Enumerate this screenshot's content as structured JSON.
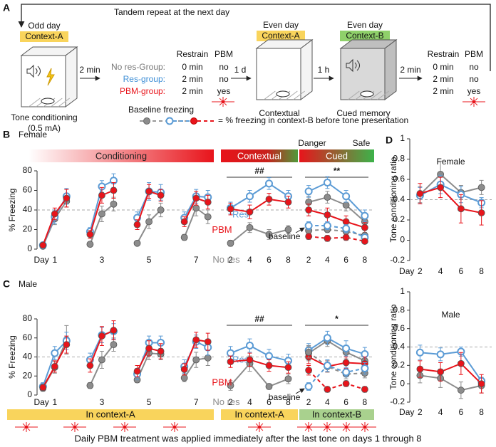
{
  "diagram": {
    "repeat": "Tandem repeat at the next day",
    "step1": {
      "day": "Odd day",
      "context": "Context-A",
      "caption": "Tone conditioning",
      "caption2": "(0.5 mA)"
    },
    "arrow1": "2 min",
    "table1": {
      "headers": [
        "Restrain",
        "PBM"
      ],
      "rows": [
        [
          "No res-Group:",
          "0 min",
          "no"
        ],
        [
          "Res-group:",
          "2 min",
          "no"
        ],
        [
          "PBM-group:",
          "2 min",
          "yes"
        ]
      ]
    },
    "arrow2": "1 d",
    "step2": {
      "day": "Even day",
      "context": "Context-A",
      "caption": "Contextual"
    },
    "arrow3": "1 h",
    "step3": {
      "day": "Even day",
      "context": "Context-B",
      "caption": "Cued memory"
    },
    "arrow4": "2 min",
    "table2": {
      "headers": [
        "Restrain",
        "PBM"
      ],
      "rows": [
        [
          "0 min",
          "no"
        ],
        [
          "2 min",
          "no"
        ],
        [
          "2 min",
          "yes"
        ]
      ]
    },
    "legend": {
      "title": "Baseline freezing",
      "text": "= % freezing in context-B before tone presentation"
    }
  },
  "figure": {
    "panels": [
      "A",
      "B",
      "C",
      "D"
    ],
    "female": "Female",
    "male": "Male",
    "context_bars": [
      "In context-A",
      "In context-A",
      "In context-B"
    ],
    "footer": "Daily PBM treatment was applied immediately after the last tone on days 1 through 8"
  },
  "chart_data": [
    {
      "type": "line",
      "header": "Conditioning",
      "ylabel": "% Freezing",
      "xlabel": "Day",
      "categories": [
        null,
        "1",
        null,
        null,
        null,
        "3",
        null,
        null,
        null,
        "5",
        null,
        null,
        null,
        "7",
        null
      ],
      "ylim": [
        0,
        80
      ],
      "yticks": [
        0,
        20,
        40,
        60,
        80
      ],
      "ref_line": 40,
      "series": [
        {
          "color": "#8c8c8c",
          "marker": "filled",
          "values": [
            3,
            31,
            49,
            null,
            5,
            36,
            46,
            null,
            6,
            28,
            40,
            null,
            12,
            42,
            33
          ],
          "errors": [
            1,
            6,
            6,
            null,
            2,
            8,
            7,
            null,
            2,
            7,
            7,
            null,
            3,
            8,
            7
          ]
        },
        {
          "color": "#5b9bd5",
          "marker": "open",
          "values": [
            4,
            33,
            54,
            null,
            18,
            64,
            70,
            null,
            32,
            59,
            58,
            null,
            32,
            54,
            53
          ],
          "errors": [
            1,
            7,
            8,
            null,
            4,
            6,
            7,
            null,
            6,
            9,
            8,
            null,
            6,
            7,
            7
          ]
        },
        {
          "color": "#e8141b",
          "marker": "filled",
          "values": [
            4,
            36,
            52,
            null,
            15,
            55,
            60,
            null,
            25,
            59,
            55,
            null,
            28,
            52,
            48
          ],
          "errors": [
            1,
            6,
            9,
            null,
            4,
            8,
            8,
            null,
            5,
            7,
            6,
            null,
            5,
            7,
            7
          ]
        }
      ]
    },
    {
      "type": "line",
      "header": "Contextual",
      "significance": "##",
      "categories": [
        "2",
        "4",
        "6",
        "8"
      ],
      "ylim": [
        0,
        80
      ],
      "ref_line": 40,
      "series": [
        {
          "name": "No res",
          "color": "#8c8c8c",
          "marker": "filled",
          "values": [
            6,
            22,
            15,
            20
          ],
          "errors": [
            3,
            5,
            5,
            4
          ]
        },
        {
          "name": "Res",
          "color": "#5b9bd5",
          "marker": "open",
          "values": [
            42,
            54,
            67,
            54
          ],
          "errors": [
            6,
            6,
            6,
            6
          ]
        },
        {
          "name": "PBM",
          "color": "#e8141b",
          "marker": "filled",
          "values": [
            41,
            38,
            51,
            48
          ],
          "errors": [
            6,
            7,
            6,
            6
          ]
        }
      ]
    },
    {
      "type": "line",
      "header": "Cued",
      "header_left": "Danger",
      "header_right": "Safe",
      "significance": "**",
      "annotation": "baseline",
      "categories": [
        "2",
        "4",
        "6",
        "8"
      ],
      "ylim": [
        0,
        80
      ],
      "ref_line": 40,
      "series": [
        {
          "color": "#8c8c8c",
          "marker": "filled",
          "values": [
            48,
            53,
            45,
            28
          ],
          "errors": [
            6,
            6,
            6,
            7
          ]
        },
        {
          "color": "#5b9bd5",
          "marker": "open",
          "values": [
            59,
            68,
            54,
            34
          ],
          "errors": [
            6,
            6,
            6,
            6
          ]
        },
        {
          "color": "#e8141b",
          "marker": "filled",
          "values": [
            40,
            35,
            28,
            22
          ],
          "errors": [
            6,
            7,
            6,
            5
          ]
        },
        {
          "color": "#8c8c8c",
          "marker": "filled",
          "dashed": true,
          "values": [
            19,
            20,
            18,
            14
          ],
          "errors": [
            3,
            3,
            3,
            3
          ]
        },
        {
          "color": "#5b9bd5",
          "marker": "open",
          "dashed": true,
          "values": [
            24,
            24,
            21,
            12
          ],
          "errors": [
            4,
            4,
            4,
            3
          ]
        },
        {
          "color": "#e8141b",
          "marker": "filled",
          "dashed": true,
          "values": [
            13,
            11,
            12,
            8
          ],
          "errors": [
            3,
            3,
            3,
            2
          ]
        }
      ]
    },
    {
      "type": "line",
      "ylabel": "% Freezing",
      "xlabel": "Day",
      "categories": [
        null,
        "1",
        null,
        null,
        null,
        "3",
        null,
        null,
        null,
        "5",
        null,
        null,
        null,
        "7",
        null
      ],
      "ylim": [
        0,
        80
      ],
      "yticks": [
        0,
        20,
        40,
        60,
        80
      ],
      "ref_line": 40,
      "series": [
        {
          "color": "#8c8c8c",
          "marker": "filled",
          "values": [
            7,
            29,
            58,
            null,
            10,
            37,
            53,
            null,
            16,
            44,
            43,
            null,
            18,
            37,
            39
          ],
          "errors": [
            3,
            6,
            15,
            null,
            3,
            9,
            7,
            null,
            3,
            7,
            6,
            null,
            4,
            8,
            8
          ]
        },
        {
          "color": "#5b9bd5",
          "marker": "open",
          "values": [
            9,
            44,
            57,
            null,
            37,
            63,
            67,
            null,
            22,
            55,
            55,
            null,
            30,
            56,
            50
          ],
          "errors": [
            4,
            7,
            9,
            null,
            7,
            8,
            8,
            null,
            6,
            7,
            7,
            null,
            7,
            7,
            8
          ]
        },
        {
          "color": "#e8141b",
          "marker": "filled",
          "values": [
            8,
            30,
            53,
            null,
            31,
            62,
            68,
            null,
            25,
            49,
            46,
            null,
            27,
            58,
            56
          ],
          "errors": [
            3,
            6,
            9,
            null,
            7,
            10,
            10,
            null,
            6,
            8,
            8,
            null,
            6,
            8,
            9
          ]
        }
      ]
    },
    {
      "type": "line",
      "significance": "##",
      "categories": [
        "2",
        "4",
        "6",
        "8"
      ],
      "ylim": [
        0,
        80
      ],
      "ref_line": 40,
      "series": [
        {
          "name": "No res",
          "color": "#8c8c8c",
          "marker": "filled",
          "values": [
            10,
            33,
            9,
            17
          ],
          "errors": [
            5,
            8,
            3,
            5
          ]
        },
        {
          "name": "Res",
          "color": "#5b9bd5",
          "marker": "open",
          "values": [
            44,
            52,
            41,
            36
          ],
          "errors": [
            7,
            7,
            7,
            7
          ]
        },
        {
          "name": "PBM",
          "color": "#e8141b",
          "marker": "filled",
          "values": [
            35,
            37,
            31,
            29
          ],
          "errors": [
            6,
            7,
            6,
            6
          ]
        }
      ]
    },
    {
      "type": "line",
      "significance": "*",
      "annotation": "baseline",
      "categories": [
        "2",
        "4",
        "6",
        "8"
      ],
      "ylim": [
        0,
        80
      ],
      "ref_line": 40,
      "series": [
        {
          "color": "#8c8c8c",
          "marker": "filled",
          "values": [
            44,
            57,
            45,
            36
          ],
          "errors": [
            8,
            6,
            7,
            7
          ]
        },
        {
          "color": "#5b9bd5",
          "marker": "open",
          "values": [
            47,
            60,
            49,
            43
          ],
          "errors": [
            7,
            7,
            8,
            7
          ]
        },
        {
          "color": "#e8141b",
          "marker": "filled",
          "values": [
            40,
            30,
            34,
            33
          ],
          "errors": [
            7,
            6,
            6,
            7
          ]
        },
        {
          "color": "#8c8c8c",
          "marker": "filled",
          "dashed": true,
          "values": [
            45,
            30,
            22,
            23
          ],
          "errors": [
            6,
            6,
            5,
            5
          ]
        },
        {
          "color": "#5b9bd5",
          "marker": "open",
          "dashed": true,
          "values": [
            9,
            31,
            24,
            28
          ],
          "errors": [
            4,
            6,
            5,
            6
          ]
        },
        {
          "color": "#e8141b",
          "marker": "filled",
          "dashed": true,
          "values": [
            26,
            6,
            12,
            6
          ],
          "errors": [
            5,
            3,
            3,
            3
          ]
        }
      ]
    },
    {
      "type": "line",
      "title": "Female",
      "ylabel": "Tone conditioning ratio",
      "xlabel": "Day",
      "categories": [
        "2",
        "4",
        "6",
        "8"
      ],
      "ylim": [
        -0.2,
        1
      ],
      "yticks": [
        -0.2,
        0,
        0.2,
        0.4,
        0.6,
        0.8,
        1
      ],
      "ref_line": 0.4,
      "series": [
        {
          "color": "#8c8c8c",
          "marker": "filled",
          "values": [
            0.45,
            0.65,
            0.47,
            0.52
          ],
          "errors": [
            0.08,
            0.13,
            0.07,
            0.07
          ]
        },
        {
          "color": "#5b9bd5",
          "marker": "open",
          "values": [
            0.44,
            0.55,
            0.45,
            0.37
          ],
          "errors": [
            0.08,
            0.09,
            0.08,
            0.05
          ]
        },
        {
          "color": "#e8141b",
          "marker": "filled",
          "values": [
            0.46,
            0.52,
            0.31,
            0.27
          ],
          "errors": [
            0.1,
            0.1,
            0.14,
            0.12
          ]
        }
      ]
    },
    {
      "type": "line",
      "title": "Male",
      "ylabel": "Tone conditioning ratio",
      "xlabel": "Day",
      "categories": [
        "2",
        "4",
        "6",
        "8"
      ],
      "ylim": [
        -0.2,
        1
      ],
      "yticks": [
        -0.2,
        0,
        0.2,
        0.4,
        0.6,
        0.8,
        1
      ],
      "ref_line": 0.4,
      "series": [
        {
          "color": "#8c8c8c",
          "marker": "filled",
          "values": [
            0.09,
            0.06,
            -0.07,
            -0.02
          ],
          "errors": [
            0.08,
            0.1,
            0.09,
            0.08
          ]
        },
        {
          "color": "#5b9bd5",
          "marker": "open",
          "values": [
            0.34,
            0.32,
            0.35,
            0.03
          ],
          "errors": [
            0.08,
            0.07,
            0.05,
            0.04
          ]
        },
        {
          "color": "#e8141b",
          "marker": "filled",
          "values": [
            0.16,
            0.13,
            0.22,
            0.0
          ],
          "errors": [
            0.09,
            0.1,
            0.12,
            0.1
          ]
        }
      ]
    }
  ]
}
